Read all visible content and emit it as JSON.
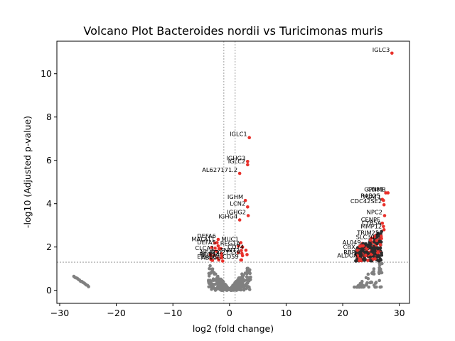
{
  "chart_data": {
    "type": "scatter",
    "title": "Volcano Plot Bacteroides nordii vs Turicimonas muris",
    "xlabel": "log2 (fold change)",
    "ylabel": "-log10 (Adjusted p-value)",
    "xlim": [
      -30.5,
      31.8
    ],
    "ylim": [
      -0.6,
      11.5
    ],
    "xticks": [
      -30,
      -20,
      -10,
      0,
      10,
      20,
      30
    ],
    "yticks": [
      0,
      2,
      4,
      6,
      8,
      10
    ],
    "threshold_lines": {
      "x": [
        -1,
        1
      ],
      "y": [
        1.3
      ]
    },
    "colors": {
      "significant": "#e8312b",
      "not_significant": "#808080",
      "threshold": "#888888"
    },
    "labeled_points": [
      {
        "gene": "IGLC3",
        "x": 28.7,
        "y": 10.95
      },
      {
        "gene": "IGLC1",
        "x": 3.5,
        "y": 7.05
      },
      {
        "gene": "IGHG3",
        "x": 3.2,
        "y": 5.95
      },
      {
        "gene": "IGLC2",
        "x": 3.2,
        "y": 5.8
      },
      {
        "gene": "AL627171.2",
        "x": 1.8,
        "y": 5.4
      },
      {
        "gene": "IGHM",
        "x": 2.8,
        "y": 4.15
      },
      {
        "gene": "LCN2",
        "x": 3.2,
        "y": 3.85
      },
      {
        "gene": "IGHG2",
        "x": 3.3,
        "y": 3.45
      },
      {
        "gene": "IGHG4",
        "x": 1.8,
        "y": 3.25
      },
      {
        "gene": "DEFA6",
        "x": -2.0,
        "y": 2.35
      },
      {
        "gene": "MUC1",
        "x": 2.0,
        "y": 2.2
      },
      {
        "gene": "MALAT1",
        "x": -2.2,
        "y": 2.2
      },
      {
        "gene": "DEFA5",
        "x": -2.0,
        "y": 2.05
      },
      {
        "gene": "REG1A",
        "x": 2.3,
        "y": 2.0
      },
      {
        "gene": "CD74",
        "x": 2.9,
        "y": 1.85
      },
      {
        "gene": "CLCA1",
        "x": -2.3,
        "y": 1.8
      },
      {
        "gene": "TNNT2",
        "x": 2.2,
        "y": 1.7
      },
      {
        "gene": "NEAT1",
        "x": -1.4,
        "y": 1.6
      },
      {
        "gene": "AC027559",
        "x": 2.3,
        "y": 1.6
      },
      {
        "gene": "REG3A",
        "x": -1.4,
        "y": 1.5
      },
      {
        "gene": "EPHB6",
        "x": -1.9,
        "y": 1.4
      },
      {
        "gene": "AB006",
        "x": -1.2,
        "y": 1.35
      },
      {
        "gene": "CD59",
        "x": 2.0,
        "y": 1.4
      },
      {
        "gene": "GPNMB",
        "x": 28.0,
        "y": 4.5
      },
      {
        "gene": "CD81",
        "x": 27.6,
        "y": 4.5
      },
      {
        "gene": "RAB25",
        "x": 27.0,
        "y": 4.2
      },
      {
        "gene": "TGAT1",
        "x": 27.2,
        "y": 4.15
      },
      {
        "gene": "CDC42SE2",
        "x": 27.3,
        "y": 3.95
      },
      {
        "gene": "NPC2",
        "x": 27.4,
        "y": 3.45
      },
      {
        "gene": "CENPF",
        "x": 27.0,
        "y": 3.1
      },
      {
        "gene": "CYB5A",
        "x": 27.2,
        "y": 2.95
      },
      {
        "gene": "MMP12",
        "x": 27.3,
        "y": 2.8
      },
      {
        "gene": "TRIM25",
        "x": 26.8,
        "y": 2.5
      },
      {
        "gene": "SLC30",
        "x": 26.0,
        "y": 2.3
      },
      {
        "gene": "AL049",
        "x": 23.6,
        "y": 2.05
      },
      {
        "gene": "CBX",
        "x": 22.6,
        "y": 1.85
      },
      {
        "gene": "RBP",
        "x": 22.6,
        "y": 1.6
      },
      {
        "gene": "ALDOA",
        "x": 23.0,
        "y": 1.45
      }
    ]
  }
}
